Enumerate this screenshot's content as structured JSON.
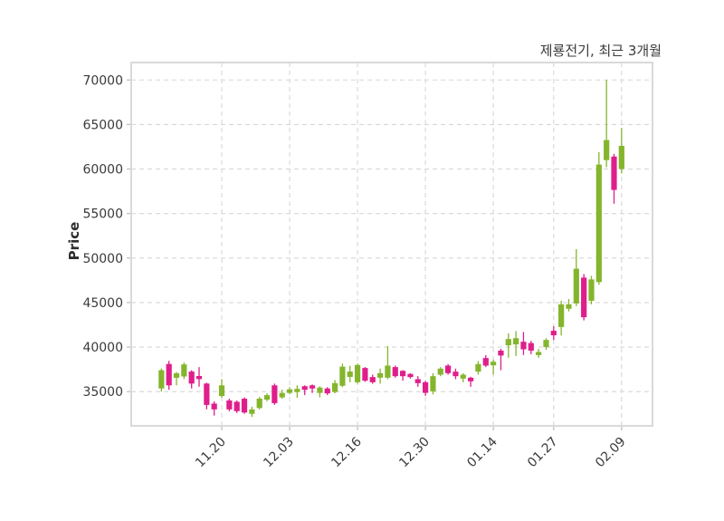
{
  "title": "제룡전기, 최근 3개월",
  "chart_data": {
    "type": "candlestick",
    "title": "제룡전기, 최근 3개월",
    "xlabel": "",
    "ylabel": "Price",
    "grid": true,
    "legend": "none",
    "ylim": [
      31150,
      71960
    ],
    "xlim": [
      -4,
      65.1
    ],
    "y_ticks": [
      35000,
      40000,
      45000,
      50000,
      55000,
      60000,
      65000,
      70000
    ],
    "x_ticks": [
      {
        "index": 8,
        "label": "11.20"
      },
      {
        "index": 17,
        "label": "12.03"
      },
      {
        "index": 26,
        "label": "12.16"
      },
      {
        "index": 35,
        "label": "12.30"
      },
      {
        "index": 44,
        "label": "01.14"
      },
      {
        "index": 52,
        "label": "01.27"
      },
      {
        "index": 61,
        "label": "02.09"
      }
    ],
    "up_color": "#84b52d",
    "down_color": "#e01e8b",
    "grid_color": "#d7d7d7",
    "spine_color": "#d9d9d9",
    "tick_label_color": "#3a3a3a",
    "candles_format": [
      "open",
      "high",
      "low",
      "close"
    ],
    "candles": [
      [
        35350,
        37600,
        35000,
        37400
      ],
      [
        38100,
        38450,
        35200,
        35700
      ],
      [
        36550,
        37200,
        35700,
        37050
      ],
      [
        36700,
        38250,
        36400,
        38050
      ],
      [
        37250,
        37400,
        35350,
        35900
      ],
      [
        36750,
        37750,
        35550,
        36400
      ],
      [
        35900,
        36000,
        33000,
        33500
      ],
      [
        33650,
        33900,
        32300,
        33000
      ],
      [
        34500,
        36400,
        34300,
        35700
      ],
      [
        34000,
        34200,
        32800,
        33000
      ],
      [
        33850,
        34000,
        32600,
        32800
      ],
      [
        34200,
        34350,
        32500,
        32650
      ],
      [
        32500,
        33300,
        32150,
        33000
      ],
      [
        33150,
        34400,
        33000,
        34200
      ],
      [
        34100,
        34800,
        33900,
        34600
      ],
      [
        35700,
        35900,
        33500,
        33700
      ],
      [
        34350,
        35200,
        34200,
        34850
      ],
      [
        34850,
        35500,
        34700,
        35250
      ],
      [
        34950,
        35700,
        34300,
        35300
      ],
      [
        35600,
        35700,
        34600,
        35200
      ],
      [
        35700,
        35800,
        34850,
        35350
      ],
      [
        34850,
        35600,
        34350,
        35450
      ],
      [
        35350,
        35500,
        34600,
        34800
      ],
      [
        34950,
        36300,
        34800,
        35950
      ],
      [
        35650,
        38150,
        35500,
        37800
      ],
      [
        36650,
        37900,
        36050,
        37250
      ],
      [
        36050,
        38150,
        35880,
        37990
      ],
      [
        37650,
        37750,
        36100,
        36220
      ],
      [
        36630,
        36900,
        35880,
        36050
      ],
      [
        36560,
        37580,
        35880,
        37070
      ],
      [
        36560,
        40100,
        36390,
        37920
      ],
      [
        37750,
        37920,
        36560,
        36730
      ],
      [
        37330,
        37410,
        36220,
        36730
      ],
      [
        36980,
        37070,
        36460,
        36630
      ],
      [
        36390,
        36730,
        35540,
        35950
      ],
      [
        36050,
        36220,
        34520,
        34860
      ],
      [
        35030,
        37070,
        34690,
        36730
      ],
      [
        36900,
        37750,
        36730,
        37580
      ],
      [
        37920,
        38090,
        36900,
        37070
      ],
      [
        37240,
        37580,
        36390,
        36730
      ],
      [
        36460,
        37070,
        36050,
        36900
      ],
      [
        36560,
        36660,
        35540,
        36150
      ],
      [
        37240,
        38430,
        36900,
        38090
      ],
      [
        38770,
        39100,
        37750,
        37920
      ],
      [
        37950,
        38600,
        36900,
        38350
      ],
      [
        39600,
        39800,
        37400,
        39050
      ],
      [
        40200,
        41550,
        38800,
        40900
      ],
      [
        40300,
        41800,
        39000,
        41000
      ],
      [
        40600,
        41700,
        39100,
        39750
      ],
      [
        40450,
        40700,
        39200,
        39600
      ],
      [
        39100,
        39800,
        38800,
        39450
      ],
      [
        40000,
        41000,
        39700,
        40800
      ],
      [
        41830,
        42340,
        40800,
        41320
      ],
      [
        42250,
        45200,
        41300,
        44800
      ],
      [
        44300,
        45400,
        44000,
        44800
      ],
      [
        44900,
        51000,
        44600,
        48800
      ],
      [
        47800,
        48200,
        43000,
        43350
      ],
      [
        45200,
        48000,
        44800,
        47600
      ],
      [
        47300,
        61900,
        47000,
        60500
      ],
      [
        61000,
        70000,
        60200,
        63250
      ],
      [
        61400,
        61700,
        56100,
        57650
      ],
      [
        60000,
        64600,
        59500,
        62600
      ]
    ]
  }
}
